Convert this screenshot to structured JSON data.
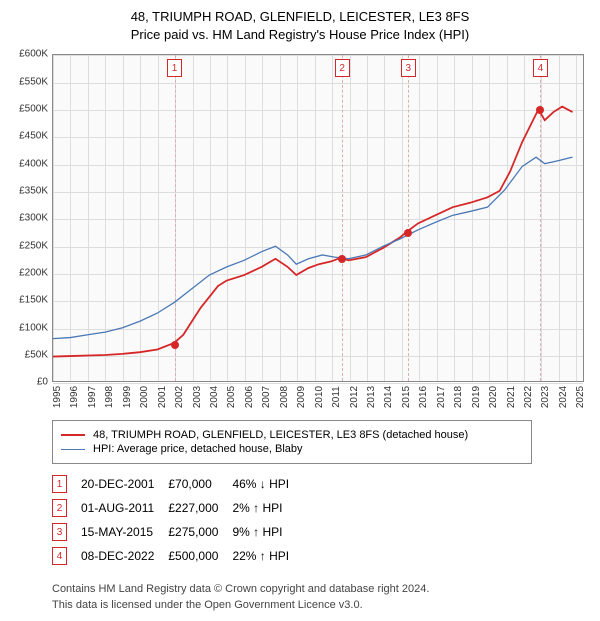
{
  "title": {
    "line1": "48, TRIUMPH ROAD, GLENFIELD, LEICESTER, LE3 8FS",
    "line2": "Price paid vs. HM Land Registry's House Price Index (HPI)"
  },
  "chart": {
    "type": "line",
    "background_color": "#fafafa",
    "border_color": "#888888",
    "grid_color": "#dddddd",
    "x": {
      "min": 1995,
      "max": 2025.5,
      "ticks": [
        1995,
        1996,
        1997,
        1998,
        1999,
        2000,
        2001,
        2002,
        2003,
        2004,
        2005,
        2006,
        2007,
        2008,
        2009,
        2010,
        2011,
        2012,
        2013,
        2014,
        2015,
        2016,
        2017,
        2018,
        2019,
        2020,
        2021,
        2022,
        2023,
        2024,
        2025
      ]
    },
    "y": {
      "min": 0,
      "max": 600000,
      "tick_step": 50000,
      "prefix": "£",
      "suffix": "K",
      "divide": 1000
    },
    "series": [
      {
        "name": "price_paid",
        "label": "48, TRIUMPH ROAD, GLENFIELD, LEICESTER, LE3 8FS (detached house)",
        "color": "#d62728",
        "line_width": 1.8,
        "points": [
          [
            1995.0,
            45000
          ],
          [
            1996.0,
            46000
          ],
          [
            1997.0,
            47000
          ],
          [
            1998.0,
            48000
          ],
          [
            1999.0,
            50000
          ],
          [
            2000.0,
            53000
          ],
          [
            2001.0,
            58000
          ],
          [
            2001.97,
            70000
          ],
          [
            2002.5,
            85000
          ],
          [
            2003.0,
            110000
          ],
          [
            2003.5,
            135000
          ],
          [
            2004.0,
            155000
          ],
          [
            2004.5,
            175000
          ],
          [
            2005.0,
            185000
          ],
          [
            2006.0,
            195000
          ],
          [
            2007.0,
            210000
          ],
          [
            2007.8,
            225000
          ],
          [
            2008.5,
            210000
          ],
          [
            2009.0,
            195000
          ],
          [
            2009.7,
            208000
          ],
          [
            2010.3,
            215000
          ],
          [
            2011.0,
            220000
          ],
          [
            2011.58,
            227000
          ],
          [
            2012.0,
            222000
          ],
          [
            2013.0,
            228000
          ],
          [
            2014.0,
            245000
          ],
          [
            2015.0,
            265000
          ],
          [
            2015.37,
            275000
          ],
          [
            2016.0,
            290000
          ],
          [
            2017.0,
            305000
          ],
          [
            2018.0,
            320000
          ],
          [
            2019.0,
            328000
          ],
          [
            2020.0,
            338000
          ],
          [
            2020.7,
            350000
          ],
          [
            2021.3,
            385000
          ],
          [
            2022.0,
            440000
          ],
          [
            2022.7,
            485000
          ],
          [
            2022.94,
            500000
          ],
          [
            2023.3,
            480000
          ],
          [
            2023.8,
            495000
          ],
          [
            2024.3,
            505000
          ],
          [
            2024.9,
            495000
          ]
        ]
      },
      {
        "name": "hpi",
        "label": "HPI: Average price, detached house, Blaby",
        "color": "#4a78b5",
        "line_width": 1.3,
        "points": [
          [
            1995.0,
            78000
          ],
          [
            1996.0,
            80000
          ],
          [
            1997.0,
            85000
          ],
          [
            1998.0,
            90000
          ],
          [
            1999.0,
            98000
          ],
          [
            2000.0,
            110000
          ],
          [
            2001.0,
            125000
          ],
          [
            2002.0,
            145000
          ],
          [
            2003.0,
            170000
          ],
          [
            2004.0,
            195000
          ],
          [
            2005.0,
            210000
          ],
          [
            2006.0,
            222000
          ],
          [
            2007.0,
            238000
          ],
          [
            2007.8,
            248000
          ],
          [
            2008.5,
            232000
          ],
          [
            2009.0,
            215000
          ],
          [
            2009.7,
            225000
          ],
          [
            2010.5,
            232000
          ],
          [
            2011.2,
            228000
          ],
          [
            2012.0,
            225000
          ],
          [
            2013.0,
            232000
          ],
          [
            2014.0,
            248000
          ],
          [
            2015.0,
            262000
          ],
          [
            2016.0,
            278000
          ],
          [
            2017.0,
            292000
          ],
          [
            2018.0,
            305000
          ],
          [
            2019.0,
            312000
          ],
          [
            2020.0,
            320000
          ],
          [
            2021.0,
            352000
          ],
          [
            2022.0,
            395000
          ],
          [
            2022.8,
            412000
          ],
          [
            2023.3,
            400000
          ],
          [
            2024.0,
            405000
          ],
          [
            2024.9,
            412000
          ]
        ]
      }
    ],
    "transactions": [
      {
        "n": 1,
        "year": 2001.97,
        "price": 70000,
        "date": "20-DEC-2001",
        "price_fmt": "£70,000",
        "delta": "46% ↓ HPI"
      },
      {
        "n": 2,
        "year": 2011.58,
        "price": 227000,
        "date": "01-AUG-2011",
        "price_fmt": "£227,000",
        "delta": "2% ↑ HPI"
      },
      {
        "n": 3,
        "year": 2015.37,
        "price": 275000,
        "date": "15-MAY-2015",
        "price_fmt": "£275,000",
        "delta": "9% ↑ HPI"
      },
      {
        "n": 4,
        "year": 2022.94,
        "price": 500000,
        "date": "08-DEC-2022",
        "price_fmt": "£500,000",
        "delta": "22% ↑ HPI"
      }
    ],
    "marker_box_color": "#d62728",
    "dot_color": "#d62728",
    "txn_line_color": "#d9b0b0"
  },
  "legend": {
    "series0": "48, TRIUMPH ROAD, GLENFIELD, LEICESTER, LE3 8FS (detached house)",
    "series1": "HPI: Average price, detached house, Blaby"
  },
  "footer": {
    "line1": "Contains HM Land Registry data © Crown copyright and database right 2024.",
    "line2": "This data is licensed under the Open Government Licence v3.0."
  }
}
